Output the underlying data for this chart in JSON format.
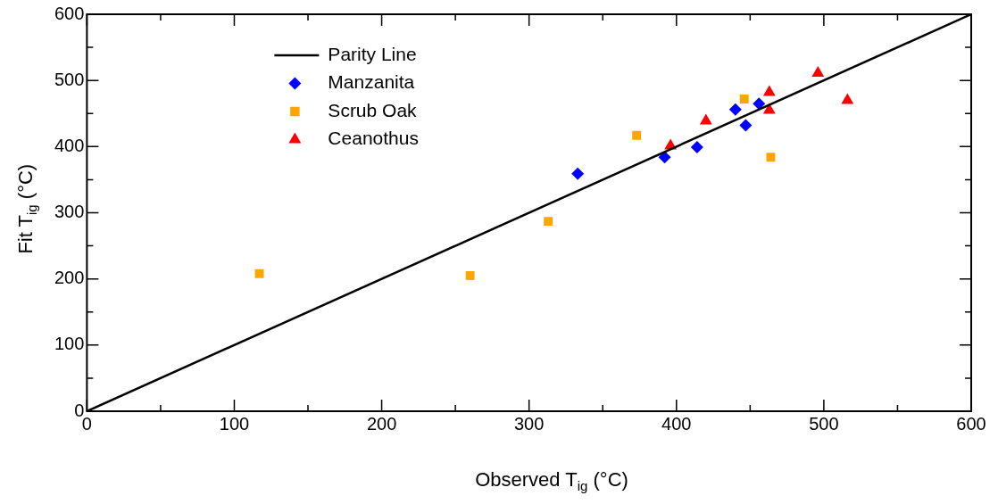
{
  "chart_data": {
    "type": "scatter",
    "xlabel": "Observed T$_{ig}$ (°C)",
    "ylabel": "Fit T$_{ig}$ (°C)",
    "xlim": [
      0,
      600
    ],
    "ylim": [
      0,
      600
    ],
    "xticks": [
      0,
      {
        "value": 50,
        "label": null
      },
      100,
      {
        "value": 150,
        "label": null
      },
      200,
      {
        "value": 250,
        "label": null
      },
      300,
      {
        "value": 350,
        "label": null
      },
      400,
      {
        "value": 450,
        "label": null
      },
      500,
      {
        "value": 550,
        "label": null
      },
      600
    ],
    "yticks": [
      0,
      {
        "value": 50,
        "label": null
      },
      100,
      {
        "value": 150,
        "label": null
      },
      200,
      {
        "value": 250,
        "label": null
      },
      300,
      {
        "value": 350,
        "label": null
      },
      400,
      {
        "value": 450,
        "label": null
      },
      500,
      {
        "value": 550,
        "label": null
      },
      600
    ],
    "grid": false,
    "legend": "top left",
    "series": [
      {
        "name": "Parity Line",
        "type": "line",
        "color": "#000000",
        "marker": "none",
        "line_style": "solid",
        "x": [
          0,
          600
        ],
        "values": [
          0,
          600
        ]
      },
      {
        "name": "Manzanita",
        "color": "#0000ff",
        "marker": "diamond",
        "x": [
          333,
          392,
          414,
          440,
          447,
          456
        ],
        "values": [
          359,
          384,
          399,
          456,
          432,
          465
        ]
      },
      {
        "name": "Scrub Oak",
        "color": "#ffa500",
        "marker": "square",
        "x": [
          117,
          260,
          313,
          373,
          446,
          464
        ],
        "values": [
          208,
          205,
          287,
          417,
          472,
          384
        ]
      },
      {
        "name": "Ceanothus",
        "color": "#ff0000",
        "marker": "triangle",
        "x": [
          396,
          420,
          463,
          463,
          496,
          516
        ],
        "values": [
          401,
          439,
          482,
          455,
          511,
          470
        ]
      }
    ]
  }
}
